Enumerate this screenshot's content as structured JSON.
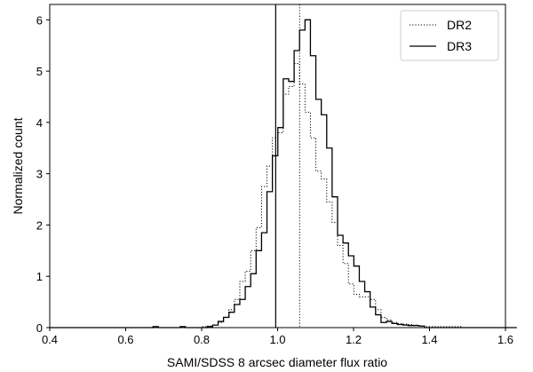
{
  "chart_data": {
    "type": "histogram",
    "xlabel": "SAMI/SDSS 8 arcsec diameter flux ratio",
    "ylabel": "Normalized count",
    "xlim": [
      0.4,
      1.6
    ],
    "ylim": [
      0,
      6.3
    ],
    "xticks": [
      "0.4",
      "0.6",
      "0.8",
      "1.0",
      "1.2",
      "1.4",
      "1.6"
    ],
    "yticks": [
      "0",
      "1",
      "2",
      "3",
      "4",
      "5",
      "6"
    ],
    "legend_position": "top-right",
    "bin_edges_start": 0.4,
    "bin_width": 0.0143,
    "series": [
      {
        "name": "DR2",
        "style": "dotted",
        "values": [
          0,
          0,
          0,
          0,
          0,
          0,
          0,
          0,
          0,
          0,
          0,
          0,
          0,
          0,
          0,
          0,
          0,
          0,
          0,
          0,
          0,
          0,
          0,
          0,
          0,
          0,
          0,
          0,
          0.02,
          0.03,
          0.05,
          0.1,
          0.2,
          0.35,
          0.55,
          0.9,
          1.1,
          1.5,
          1.95,
          2.75,
          3.15,
          3.7,
          3.8,
          4.55,
          4.7,
          5.15,
          4.75,
          4.2,
          3.7,
          3.05,
          2.9,
          2.45,
          2.05,
          1.6,
          1.25,
          0.85,
          0.65,
          0.6,
          0.6,
          0.55,
          0.35,
          0.2,
          0.15,
          0.1,
          0.08,
          0.07,
          0.06,
          0.05,
          0.03,
          0.02,
          0.02,
          0.02,
          0.02,
          0.02,
          0.02,
          0.02,
          0,
          0,
          0,
          0,
          0,
          0,
          0,
          0,
          0,
          0
        ]
      },
      {
        "name": "DR3",
        "style": "solid",
        "values": [
          0,
          0,
          0,
          0,
          0,
          0,
          0,
          0,
          0,
          0,
          0,
          0,
          0,
          0,
          0,
          0,
          0,
          0,
          0,
          0.02,
          0,
          0,
          0,
          0,
          0.02,
          0,
          0,
          0,
          0,
          0.02,
          0.05,
          0.12,
          0.2,
          0.3,
          0.45,
          0.55,
          0.8,
          1.05,
          1.5,
          1.85,
          2.65,
          3.35,
          3.9,
          4.85,
          4.8,
          5.4,
          5.8,
          6.0,
          5.3,
          4.45,
          4.15,
          3.5,
          2.55,
          1.8,
          1.65,
          1.4,
          1.2,
          0.9,
          0.7,
          0.4,
          0.25,
          0.1,
          0.12,
          0.08,
          0.06,
          0.05,
          0.04,
          0.04,
          0.03,
          0,
          0,
          0,
          0,
          0,
          0,
          0,
          0,
          0,
          0,
          0,
          0,
          0,
          0,
          0,
          0,
          0
        ]
      }
    ],
    "vertical_lines": [
      {
        "x": 0.995,
        "style": "solid"
      },
      {
        "x": 1.058,
        "style": "dotted"
      }
    ]
  }
}
